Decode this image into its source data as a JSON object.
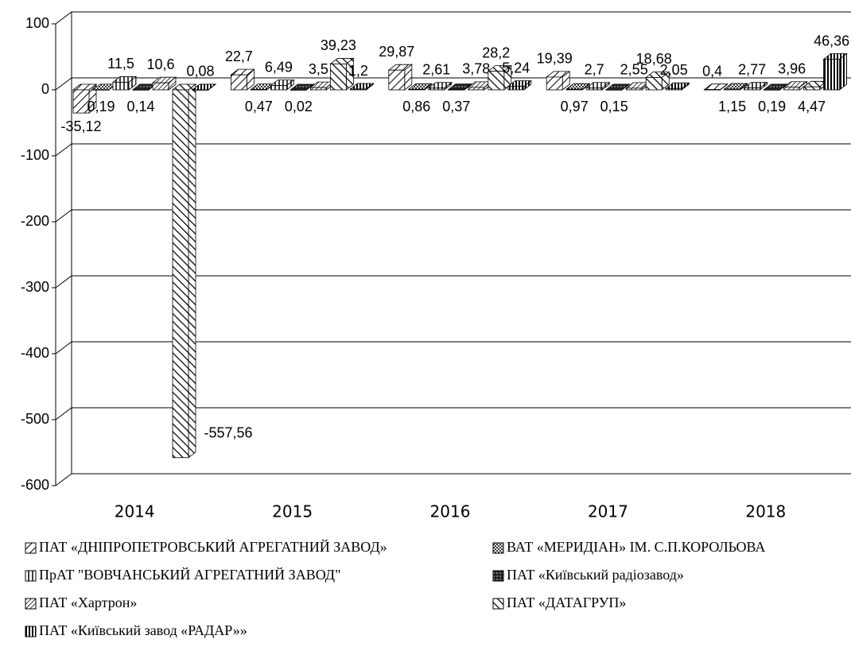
{
  "chart_data": {
    "type": "bar3d",
    "categories": [
      "2014",
      "2015",
      "2016",
      "2017",
      "2018"
    ],
    "ylim": [
      -600,
      100
    ],
    "yticks": [
      -600,
      -500,
      -400,
      -300,
      -200,
      -100,
      0,
      100
    ],
    "grid": true,
    "legend": "bottom",
    "series": [
      {
        "name": "ПАТ «ДНІПРОПЕТРОВСЬКИЙ АГРЕГАТНИЙ ЗАВОД»",
        "values": [
          -35.12,
          22.7,
          29.87,
          19.39,
          0.4
        ],
        "value_labels": [
          "-35,12",
          "22,7",
          "29,87",
          "19,39",
          "0,4"
        ]
      },
      {
        "name": "ВАТ «МЕРИДІАН» ІМ. С.П.КОРОЛЬОВА",
        "values": [
          0.19,
          0.47,
          0.86,
          0.97,
          1.15
        ],
        "value_labels": [
          "0,19",
          "0,47",
          "0,86",
          "0,97",
          "1,15"
        ]
      },
      {
        "name": "ПрАТ \"ВОВЧАНСЬКИЙ АГРЕГАТНИЙ ЗАВОД\"",
        "values": [
          11.5,
          6.49,
          2.61,
          2.7,
          2.77
        ],
        "value_labels": [
          "11,5",
          "6,49",
          "2,61",
          "2,7",
          "2,77"
        ]
      },
      {
        "name": "ПАТ «Київський радіозавод»",
        "values": [
          0.14,
          0.02,
          0.37,
          0.15,
          0.19
        ],
        "value_labels": [
          "0,14",
          "0,02",
          "0,37",
          "0,15",
          "0,19"
        ]
      },
      {
        "name": "ПАТ «Хартрон»",
        "values": [
          10.6,
          3.5,
          3.78,
          2.55,
          3.96
        ],
        "value_labels": [
          "10,6",
          "3,5",
          "3,78",
          "2,55",
          "3,96"
        ]
      },
      {
        "name": "ПАТ «ДАТАГРУП»",
        "values": [
          -557.56,
          39.23,
          28.2,
          18.68,
          4.47
        ],
        "value_labels": [
          "-557,56",
          "39,23",
          "28,2",
          "18,68",
          "4,47"
        ]
      },
      {
        "name": "ПАТ «Київський завод «РАДАР»»",
        "values": [
          0.08,
          1.2,
          5.24,
          2.05,
          46.36
        ],
        "value_labels": [
          "0,08",
          "1,2",
          "5,24",
          "2,05",
          "46,36"
        ]
      }
    ]
  }
}
